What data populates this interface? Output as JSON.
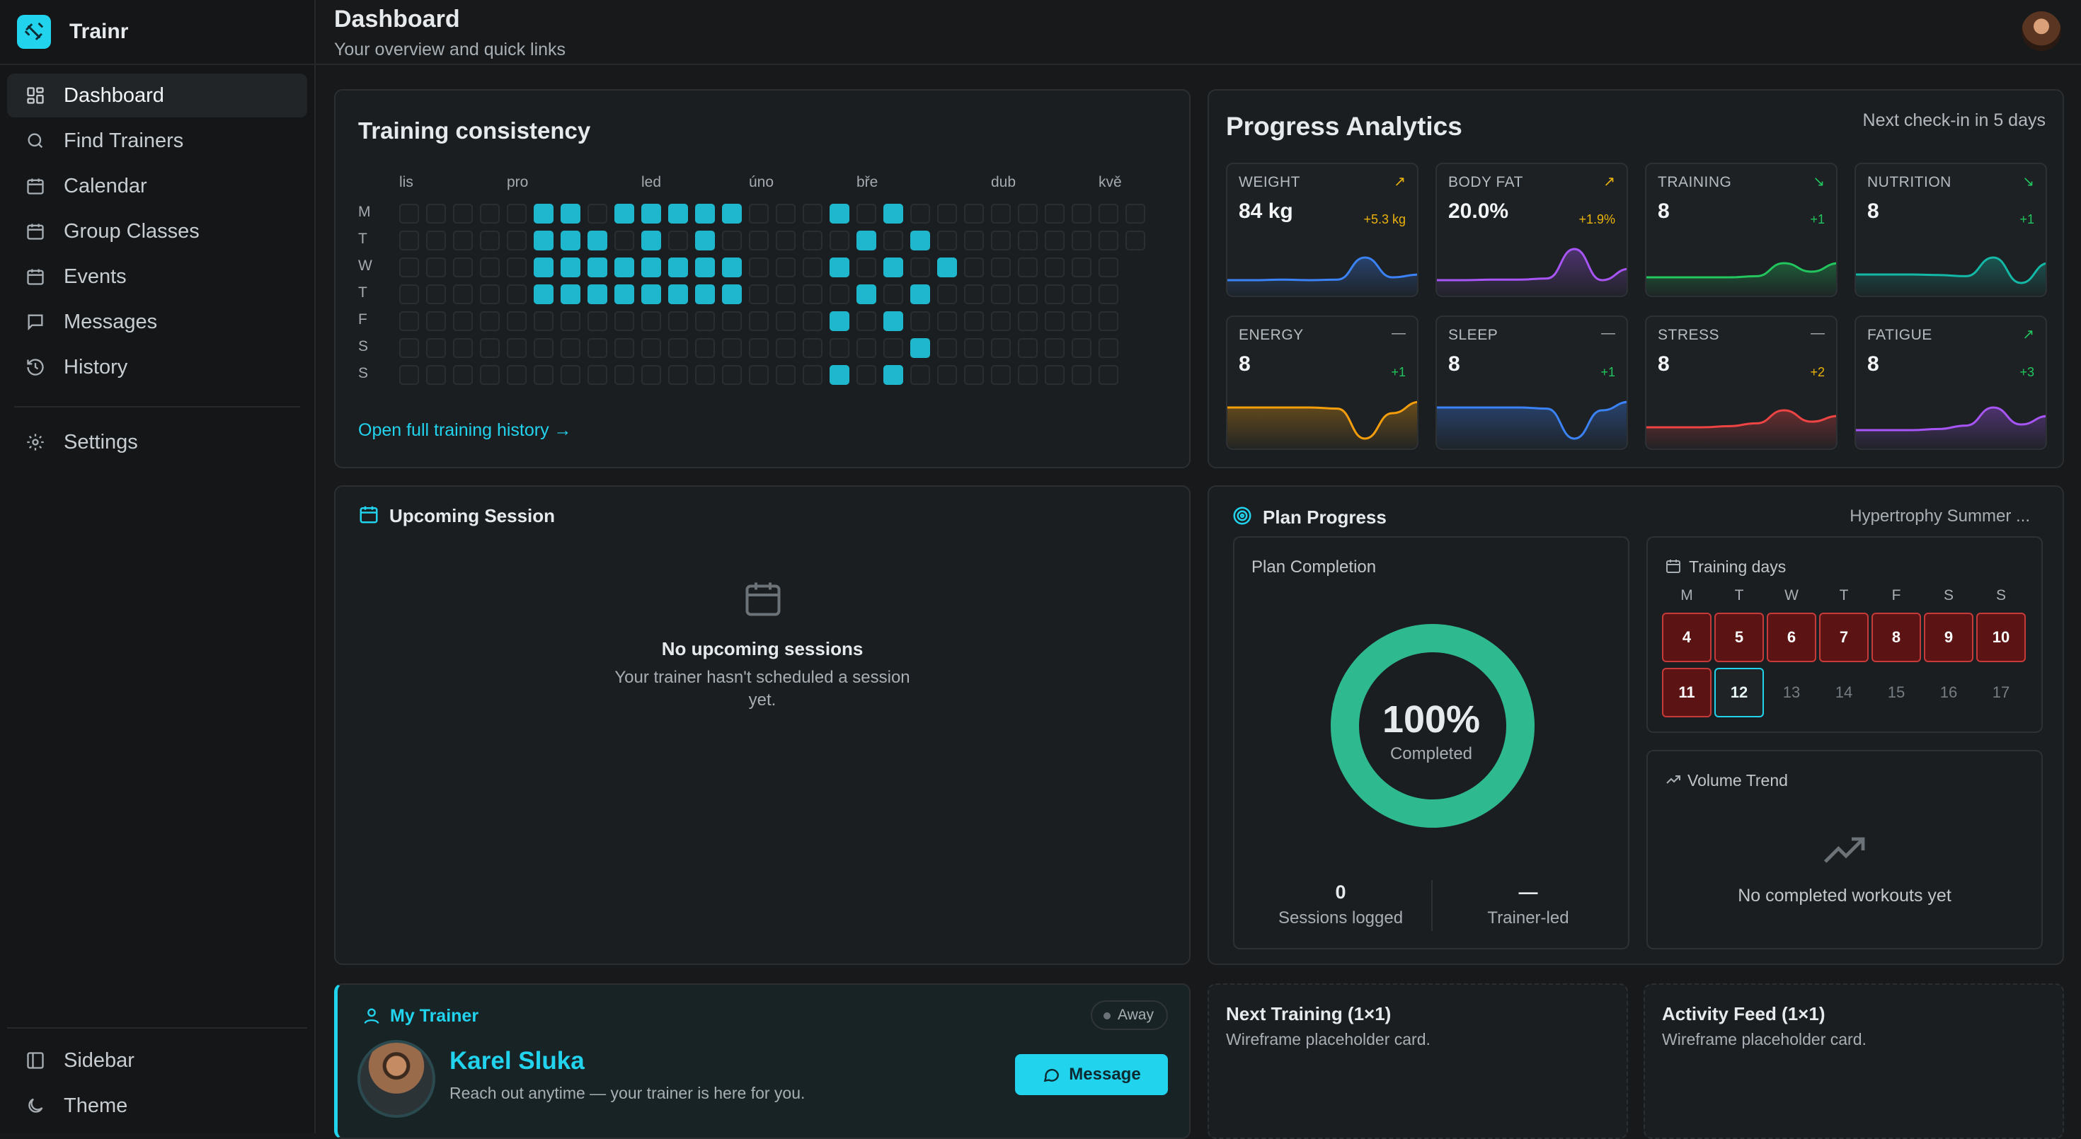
{
  "app": {
    "name": "Trainr"
  },
  "header": {
    "title": "Dashboard",
    "subtitle": "Your overview and quick links"
  },
  "sidebar": {
    "items": [
      {
        "label": "Dashboard",
        "icon": "grid-icon",
        "active": true
      },
      {
        "label": "Find Trainers",
        "icon": "search-icon"
      },
      {
        "label": "Calendar",
        "icon": "calendar-icon"
      },
      {
        "label": "Group Classes",
        "icon": "calendar-icon"
      },
      {
        "label": "Events",
        "icon": "calendar-icon"
      },
      {
        "label": "Messages",
        "icon": "chat-icon"
      },
      {
        "label": "History",
        "icon": "history-icon"
      }
    ],
    "settings": "Settings",
    "bottom": [
      {
        "label": "Sidebar",
        "icon": "sidebar-icon"
      },
      {
        "label": "Theme",
        "icon": "moon-icon"
      }
    ]
  },
  "consistency": {
    "title": "Training consistency",
    "months": [
      "lis",
      "pro",
      "led",
      "úno",
      "bře",
      "dub",
      "kvě"
    ],
    "days": [
      "M",
      "T",
      "W",
      "T",
      "F",
      "S",
      "S"
    ],
    "weeks": 28,
    "active_cells": {
      "0": [
        5,
        6,
        8,
        9,
        10,
        11,
        12,
        16,
        18
      ],
      "1": [
        5,
        6,
        7,
        9,
        11,
        17,
        19
      ],
      "2": [
        5,
        6,
        7,
        8,
        9,
        10,
        11,
        12,
        16,
        18,
        20
      ],
      "3": [
        5,
        6,
        7,
        8,
        9,
        10,
        11,
        12,
        17,
        19
      ],
      "4": [
        16,
        18
      ],
      "5": [
        19
      ],
      "6": [
        16,
        18
      ]
    },
    "link": "Open full training history →"
  },
  "analytics": {
    "title": "Progress Analytics",
    "checkin": "Next check-in in 5 days",
    "metrics": [
      {
        "name": "WEIGHT",
        "value": "84 kg",
        "delta": "+5.3 kg",
        "arrow": "↗",
        "color": "#3b82f6",
        "delta_color": "#eab308",
        "trend": [
          0.15,
          0.15,
          0.16,
          0.15,
          0.16,
          0.55,
          0.2,
          0.25
        ]
      },
      {
        "name": "BODY FAT",
        "value": "20.0%",
        "delta": "+1.9%",
        "arrow": "↗",
        "color": "#a855f7",
        "delta_color": "#eab308",
        "trend": [
          0.15,
          0.15,
          0.16,
          0.16,
          0.18,
          0.7,
          0.15,
          0.35
        ]
      },
      {
        "name": "TRAINING",
        "value": "8",
        "delta": "+1",
        "arrow": "↘",
        "color": "#22c55e",
        "delta_color": "#22c55e",
        "trend": [
          0.2,
          0.2,
          0.2,
          0.2,
          0.22,
          0.45,
          0.3,
          0.45
        ]
      },
      {
        "name": "NUTRITION",
        "value": "8",
        "delta": "+1",
        "arrow": "↘",
        "color": "#14b8a6",
        "delta_color": "#22c55e",
        "trend": [
          0.25,
          0.25,
          0.25,
          0.24,
          0.22,
          0.55,
          0.1,
          0.45
        ]
      },
      {
        "name": "ENERGY",
        "value": "8",
        "delta": "+1",
        "arrow": "—",
        "color": "#f59e0b",
        "delta_color": "#22c55e",
        "trend": [
          0.6,
          0.6,
          0.6,
          0.6,
          0.58,
          0.05,
          0.5,
          0.7
        ]
      },
      {
        "name": "SLEEP",
        "value": "8",
        "delta": "+1",
        "arrow": "—",
        "color": "#3b82f6",
        "delta_color": "#22c55e",
        "trend": [
          0.6,
          0.6,
          0.6,
          0.6,
          0.58,
          0.05,
          0.55,
          0.7
        ]
      },
      {
        "name": "STRESS",
        "value": "8",
        "delta": "+2",
        "arrow": "—",
        "color": "#ef4444",
        "delta_color": "#eab308",
        "trend": [
          0.25,
          0.25,
          0.25,
          0.27,
          0.32,
          0.55,
          0.35,
          0.45
        ]
      },
      {
        "name": "FATIGUE",
        "value": "8",
        "delta": "+3",
        "arrow": "↗",
        "color": "#a855f7",
        "delta_color": "#22c55e",
        "trend": [
          0.2,
          0.2,
          0.2,
          0.22,
          0.28,
          0.6,
          0.3,
          0.45
        ]
      }
    ]
  },
  "upcoming": {
    "title": "Upcoming Session",
    "empty_title": "No upcoming sessions",
    "empty_text_1": "Your trainer hasn't scheduled a session",
    "empty_text_2": "yet."
  },
  "plan": {
    "title": "Plan Progress",
    "plan_name": "Hypertrophy Summer ...",
    "completion_title": "Plan Completion",
    "percent": "100%",
    "percent_value": 1.0,
    "completed_label": "Completed",
    "sessions_value": "0",
    "sessions_label": "Sessions logged",
    "trainer_value": "—",
    "trainer_label": "Trainer-led",
    "training_days_title": "Training days",
    "dow": [
      "M",
      "T",
      "W",
      "T",
      "F",
      "S",
      "S"
    ],
    "week1": [
      "4",
      "5",
      "6",
      "7",
      "8",
      "9",
      "10"
    ],
    "week2": [
      "11",
      "12",
      "13",
      "14",
      "15",
      "16",
      "17"
    ],
    "volume_title": "Volume Trend",
    "volume_empty": "No completed workouts yet"
  },
  "trainer": {
    "section": "My Trainer",
    "status": "Away",
    "name": "Karel Sluka",
    "tagline": "Reach out anytime — your trainer is here for you.",
    "button": "Message"
  },
  "next_training": {
    "title": "Next Training (1×1)",
    "text": "Wireframe placeholder card."
  },
  "activity": {
    "title": "Activity Feed (1×1)",
    "text": "Wireframe placeholder card."
  }
}
